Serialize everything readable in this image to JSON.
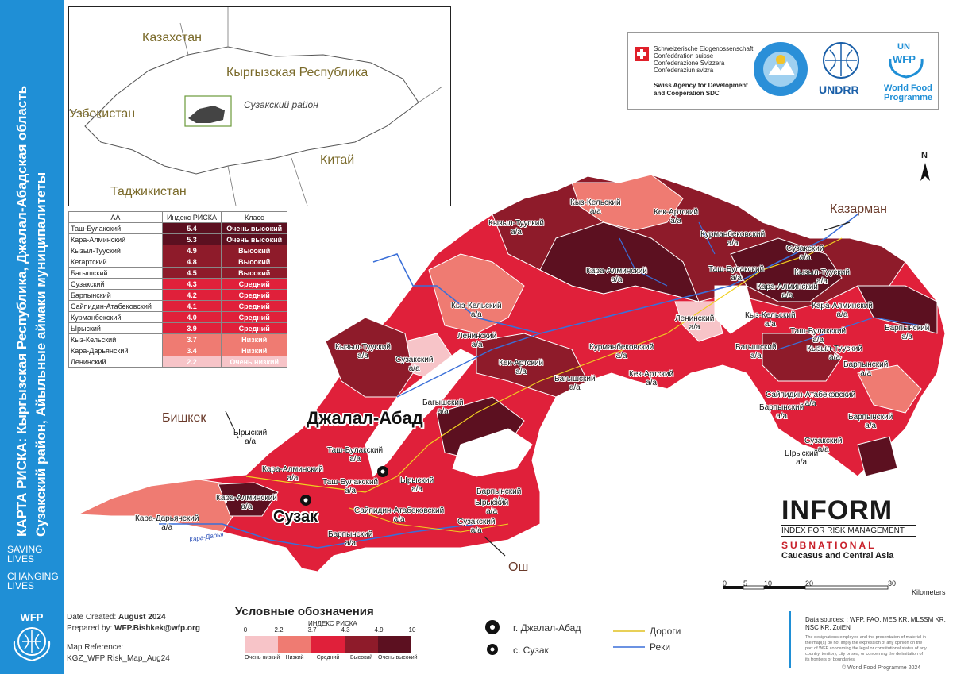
{
  "sidebar": {
    "title_line1": "КАРТА РИСКА: Кыргызская Республика, Джалал-Абадская область",
    "title_line2": "Сузакский район, Айыльные аймаки муниципалитеты",
    "tagline_1a": "SAVING",
    "tagline_1b": "LIVES",
    "tagline_2a": "CHANGING",
    "tagline_2b": "LIVES",
    "logo_text": "WFP"
  },
  "inset_map": {
    "labels": {
      "kazakhstan": "Казахстан",
      "kyrgyzstan": "Кыргызская Республика",
      "uzbekistan": "Узбекистан",
      "china": "Китай",
      "tajikistan": "Таджикистан",
      "suzak": "Сузакский район"
    }
  },
  "risk_table": {
    "headers": [
      "АА",
      "Индекс РИСКА",
      "Класс"
    ],
    "rows": [
      {
        "name": "Таш-Булакский",
        "index": "5.4",
        "class": "Очень высокий",
        "color": "#5c1020"
      },
      {
        "name": "Кара-Алминский",
        "index": "5.3",
        "class": "Очень высокий",
        "color": "#5c1020"
      },
      {
        "name": "Кызыл-Тууский",
        "index": "4.9",
        "class": "Высокий",
        "color": "#8e1b2a"
      },
      {
        "name": "Кегартский",
        "index": "4.8",
        "class": "Высокий",
        "color": "#8e1b2a"
      },
      {
        "name": "Багышский",
        "index": "4.5",
        "class": "Высокий",
        "color": "#8e1b2a"
      },
      {
        "name": "Сузакский",
        "index": "4.3",
        "class": "Средний",
        "color": "#e0203a"
      },
      {
        "name": "Барпынский",
        "index": "4.2",
        "class": "Средний",
        "color": "#e0203a"
      },
      {
        "name": "Сайпидин-Атабековский",
        "index": "4.1",
        "class": "Средний",
        "color": "#e0203a"
      },
      {
        "name": "Курманбекский",
        "index": "4.0",
        "class": "Средний",
        "color": "#e0203a"
      },
      {
        "name": "Ырыский",
        "index": "3.9",
        "class": "Средний",
        "color": "#e0203a"
      },
      {
        "name": "Кыз-Кельский",
        "index": "3.7",
        "class": "Низкий",
        "color": "#ef7b72"
      },
      {
        "name": "Кара-Дарьянский",
        "index": "3.4",
        "class": "Низкий",
        "color": "#ef7b72"
      },
      {
        "name": "Ленинский",
        "index": "2.2",
        "class": "Очень низкий",
        "color": "#f7c4c8"
      }
    ]
  },
  "partners": {
    "sdc_line1": "Schweizerische Eidgenossenschaft",
    "sdc_line2": "Confédération suisse",
    "sdc_line3": "Confederazione Svizzera",
    "sdc_line4": "Confederaziun svizra",
    "sdc_agency": "Swiss Agency for Development",
    "sdc_agency2": "and Cooperation SDC",
    "undrr": "UNDRR",
    "wfp_un": "UN",
    "wfp_short": "WFP",
    "wfp_name1": "World Food",
    "wfp_name2": "Programme"
  },
  "map": {
    "north": "N",
    "towns": {
      "jalal_abad": "Джалал-Абад",
      "suzak": "Сузак",
      "bishkek": "Бишкек",
      "osh": "Ош",
      "kazarman": "Казарман"
    },
    "region_labels": [
      "Кыз-Кельский а/а",
      "Кек-Артский а/а",
      "Кызыл-Тууский а/а",
      "Курманбековский а/а",
      "Сузакский а/а",
      "Кара-Алминский а/а",
      "Таш-Булакский а/а",
      "Кара-Алминский а/а",
      "Кызыл-Тууский а/а",
      "Кыз-Кельский а/а",
      "Кара-Алминский а/а",
      "Ленинский а/а",
      "Кыз-Кельский а/а",
      "Барпынский а/а",
      "Таш-Булакский а/а",
      "Ленинский а/а",
      "Багышский а/а",
      "Кызыл-Тууский а/а",
      "Курманбековский а/а",
      "Кызыл-Тууский а/а",
      "Сузакский а/а",
      "Кек-Артский а/а",
      "Барпынский а/а",
      "Кек-Артский а/а",
      "Багышский а/а",
      "Сайпидин-Атабековский а/а",
      "Багышский а/а",
      "Барпынский а/а",
      "Барпынский а/а",
      "Ырыский а/а",
      "Сузакский а/а",
      "Ырыский а/а",
      "Кара-Алминский а/а",
      "Таш-Булакский а/а",
      "Таш-Булакский а/а",
      "Ырыский а/а",
      "Кара-Алминский а/а",
      "Кара-Дарьянский а/а",
      "Сайпидин-Атабековский а/а",
      "Барпынский а/а",
      "Ырыский а/а",
      "Сузакский а/а",
      "Барпынский а/а"
    ],
    "river_label_1": "Кара-Дарья",
    "scale_ticks": [
      "0",
      "5",
      "10",
      "20",
      "30"
    ],
    "scale_unit": "Kilometers"
  },
  "inform": {
    "name": "INFORM",
    "subtitle": "INDEX FOR RISK MANAGEMENT",
    "subnational": "SUBNATIONAL",
    "region": "Caucasus and Central Asia"
  },
  "footer": {
    "date_label": "Date Created:",
    "date_value": "August 2024",
    "prepared_label": "Prepared by:",
    "prepared_value": "WFP.Bishkek@wfp.org",
    "ref_label": "Map Reference:",
    "ref_value": "KGZ_WFP Risk_Map_Aug24",
    "legend_title": "Условные обозначения",
    "legend_subtitle": "ИНДЕКС РИСКА",
    "legend_ticks": [
      "0",
      "2.2",
      "3.7",
      "4.3",
      "4.9",
      "10"
    ],
    "legend_classes": [
      "Очень низкий",
      "Низкий",
      "Средний",
      "Высокий",
      "Очень высокий"
    ],
    "legend_colors": [
      "#f7c4c8",
      "#ef7b72",
      "#e0203a",
      "#8e1b2a",
      "#5c1020"
    ],
    "sym_city": "г. Джалал-Абад",
    "sym_village": "с. Сузак",
    "roads": "Дороги",
    "rivers": "Реки",
    "sources_1": "Data sources: : WFP, FAO, MES KR, MLSSM KR,",
    "sources_2": "NSC KR, ZoiEN",
    "disclaimer_1": "The designations employed and the presentation of material in",
    "disclaimer_2": "the map(s) do not imply the expression of any opinion on the",
    "disclaimer_3": "part of WFP concerning the legal or constitutional status of any",
    "disclaimer_4": "country, territory, city or sea, or concerning the delimitation of",
    "disclaimer_5": "its frontiers or boundaries.",
    "copyright": "© World Food Programme 2024"
  }
}
